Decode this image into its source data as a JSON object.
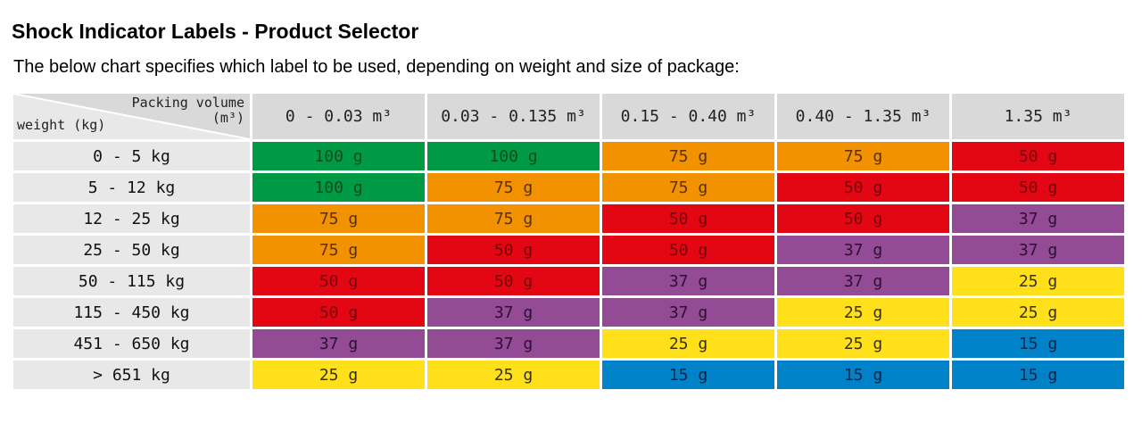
{
  "title": "Shock Indicator Labels - Product Selector",
  "subtitle": "The below chart specifies which label to be used, depending on weight and size of package:",
  "table": {
    "corner_top": "Packing volume",
    "corner_top_unit": "(m³)",
    "corner_left": "weight (kg)",
    "columns": [
      "0 - 0.03 m³",
      "0.03 - 0.135 m³",
      "0.15 - 0.40 m³",
      "0.40 - 1.35 m³",
      "1.35 m³"
    ],
    "rows": [
      {
        "label": "0 - 5 kg",
        "cells": [
          "100 g",
          "100 g",
          "75 g",
          "75 g",
          "50 g"
        ]
      },
      {
        "label": "5 - 12 kg",
        "cells": [
          "100 g",
          "75 g",
          "75 g",
          "50 g",
          "50 g"
        ]
      },
      {
        "label": "12 - 25 kg",
        "cells": [
          "75 g",
          "75 g",
          "50 g",
          "50 g",
          "37 g"
        ]
      },
      {
        "label": "25 - 50 kg",
        "cells": [
          "75 g",
          "50 g",
          "50 g",
          "37 g",
          "37 g"
        ]
      },
      {
        "label": "50 - 115 kg",
        "cells": [
          "50 g",
          "50 g",
          "37 g",
          "37 g",
          "25 g"
        ]
      },
      {
        "label": "115 - 450 kg",
        "cells": [
          "50 g",
          "37 g",
          "37 g",
          "25 g",
          "25 g"
        ]
      },
      {
        "label": "451 - 650 kg",
        "cells": [
          "37 g",
          "37 g",
          "25 g",
          "25 g",
          "15 g"
        ]
      },
      {
        "label": "> 651 kg",
        "cells": [
          "25 g",
          "25 g",
          "15 g",
          "15 g",
          "15 g"
        ]
      }
    ]
  },
  "colors": {
    "100 g": {
      "bg": "#009a44",
      "fg": "#0b4d1f"
    },
    "75 g": {
      "bg": "#f39200",
      "fg": "#5a3000"
    },
    "50 g": {
      "bg": "#e30613",
      "fg": "#7a0008"
    },
    "37 g": {
      "bg": "#944b96",
      "fg": "#2e0e32"
    },
    "25 g": {
      "bg": "#ffe01a",
      "fg": "#3a3000"
    },
    "15 g": {
      "bg": "#0082c8",
      "fg": "#06264a"
    }
  }
}
